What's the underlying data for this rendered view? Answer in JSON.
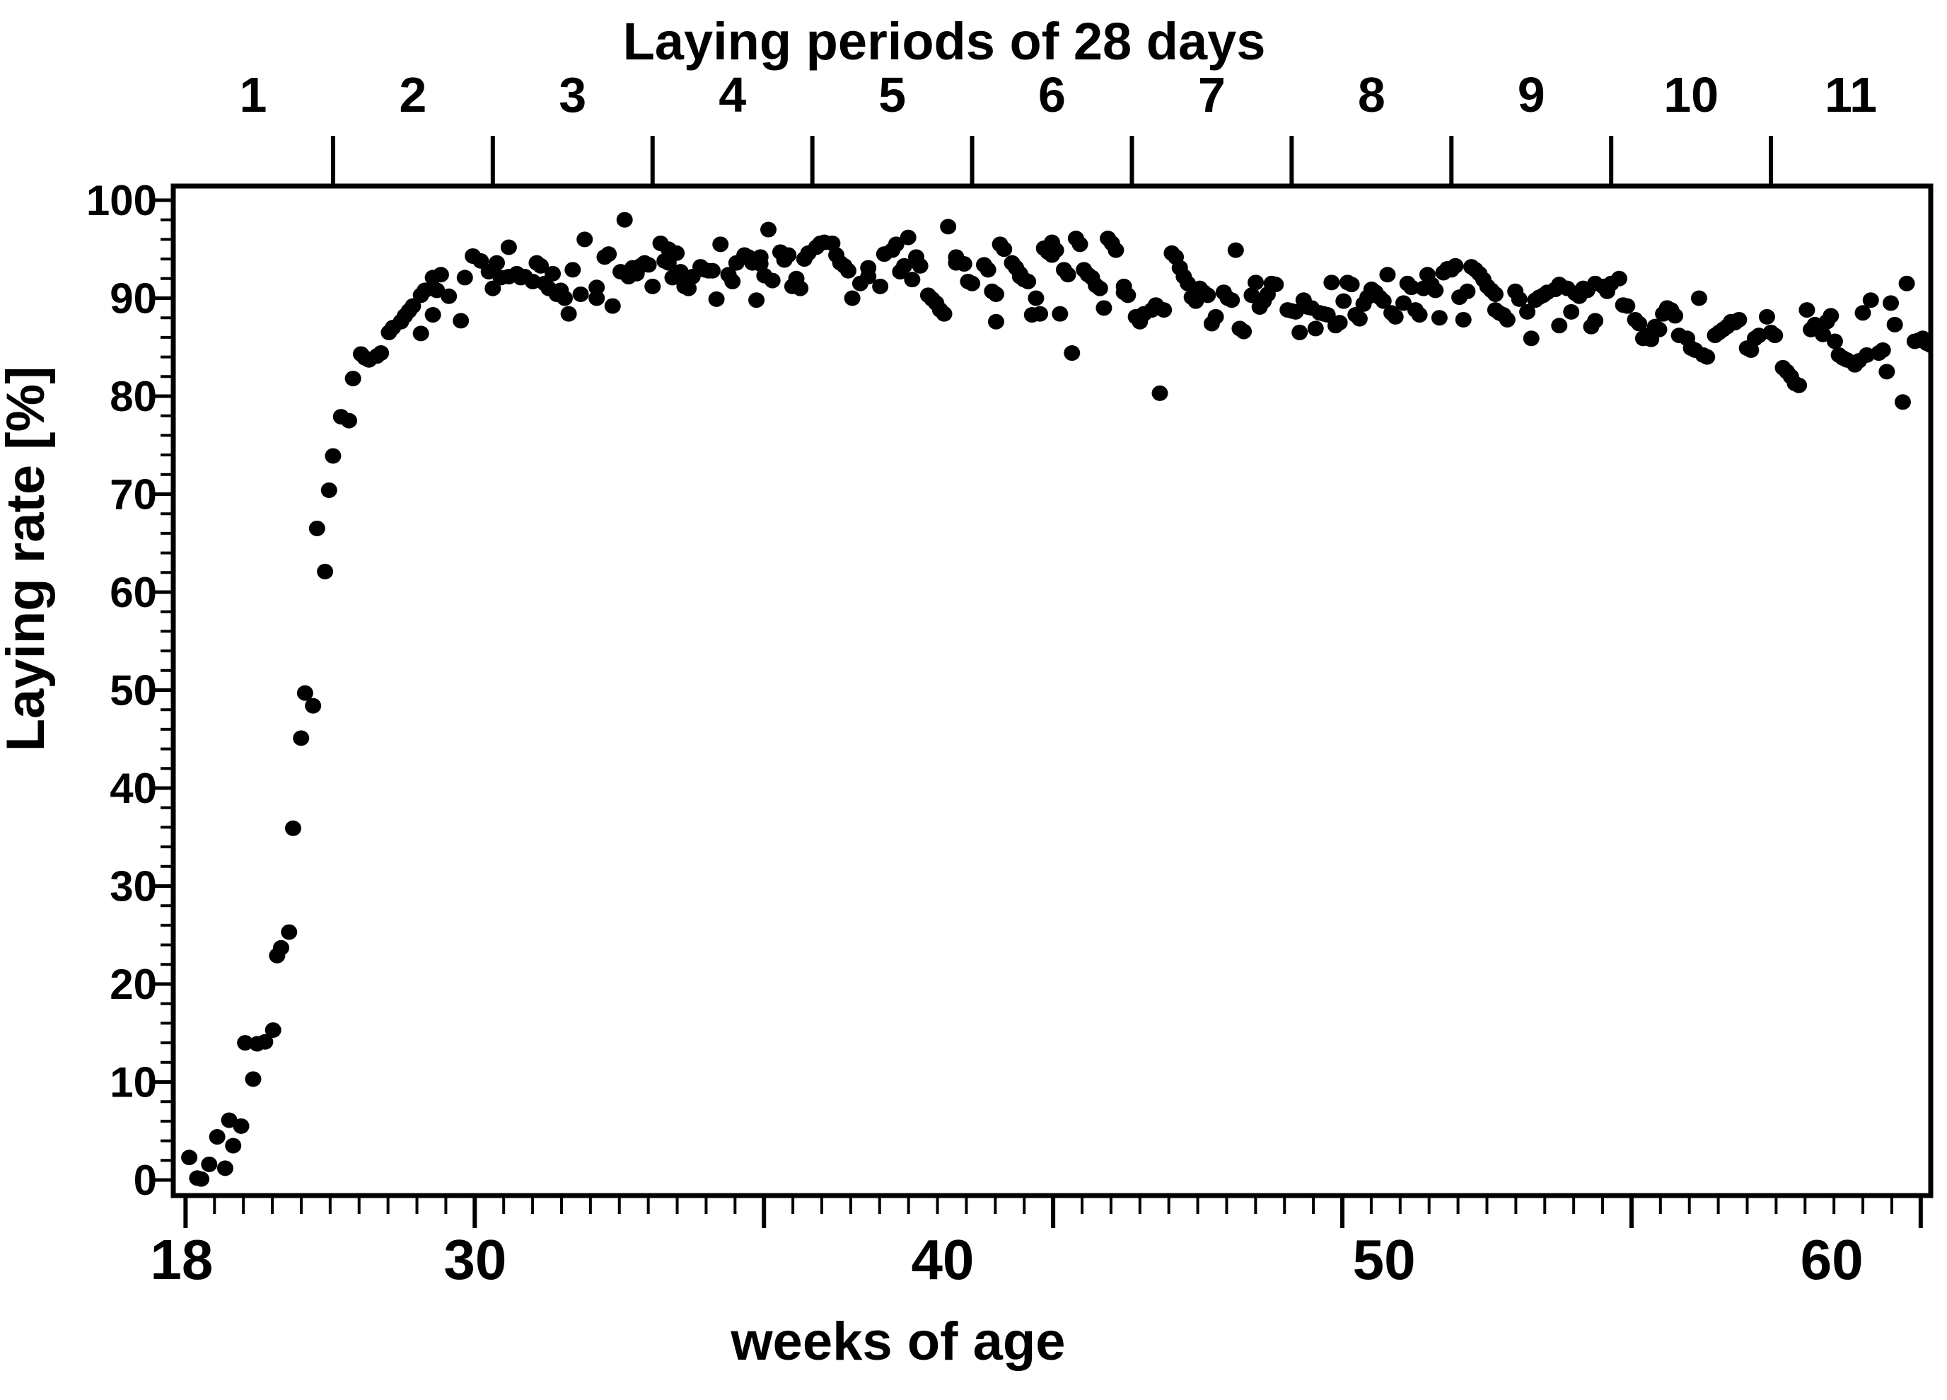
{
  "page": {
    "background": "#ffffff",
    "ink_color": "#000000"
  },
  "chart_data": {
    "type": "scatter",
    "title": "",
    "xlabel": "weeks of age",
    "ylabel": "Laying rate [%]",
    "grid": false,
    "legend": false,
    "marker": {
      "shape": "filled-circle",
      "color": "#000000",
      "radius_px": 11.5
    },
    "top_axis": {
      "title": "Laying periods of 28 days",
      "label_values": [
        "1",
        "2",
        "3",
        "4",
        "5",
        "6",
        "7",
        "8",
        "9",
        "10",
        "11"
      ],
      "label_center_weeks": [
        20,
        24,
        28,
        32,
        36,
        40,
        44,
        48,
        52,
        56,
        60
      ],
      "boundary_tick_weeks": [
        22,
        26,
        30,
        34,
        38,
        42,
        46,
        50,
        54,
        58
      ],
      "period_length_days": 28
    },
    "x_axis": {
      "range_weeks": [
        18,
        62
      ],
      "tick_labels": [
        {
          "value": "18",
          "pos_frac": 0.0048
        },
        {
          "value": "30",
          "pos_frac": 0.1718
        },
        {
          "value": "40",
          "pos_frac": 0.4378
        },
        {
          "value": "50",
          "pos_frac": 0.689
        },
        {
          "value": "60",
          "pos_frac": 0.9437
        }
      ],
      "minor_ticks": {
        "count": 61,
        "start_frac": 0.007,
        "step_frac": 0.016455,
        "major_every": 10
      }
    },
    "y_axis": {
      "range": [
        0,
        100
      ],
      "major_ticks": [
        0,
        10,
        20,
        30,
        40,
        50,
        60,
        70,
        80,
        90,
        100
      ],
      "minor_step": 2
    },
    "points": [
      [
        18.4,
        2.3
      ],
      [
        18.6,
        0.2
      ],
      [
        18.7,
        0.1
      ],
      [
        18.9,
        1.6
      ],
      [
        19.1,
        4.4
      ],
      [
        19.3,
        1.2
      ],
      [
        19.4,
        6.1
      ],
      [
        19.5,
        3.5
      ],
      [
        19.7,
        5.5
      ],
      [
        19.8,
        14.0
      ],
      [
        20.0,
        10.3
      ],
      [
        20.1,
        13.9
      ],
      [
        20.3,
        14.1
      ],
      [
        20.5,
        15.3
      ],
      [
        20.6,
        22.9
      ],
      [
        20.7,
        23.7
      ],
      [
        20.9,
        25.3
      ],
      [
        21.0,
        35.9
      ],
      [
        21.2,
        45.1
      ],
      [
        21.3,
        49.7
      ],
      [
        21.5,
        48.4
      ],
      [
        21.6,
        66.5
      ],
      [
        21.8,
        62.1
      ],
      [
        21.9,
        70.4
      ],
      [
        22.0,
        73.9
      ],
      [
        22.2,
        77.9
      ],
      [
        22.4,
        77.5
      ],
      [
        22.5,
        81.8
      ],
      [
        22.7,
        84.3
      ],
      [
        22.8,
        83.9
      ],
      [
        22.9,
        83.7
      ],
      [
        23.1,
        84.1
      ],
      [
        23.2,
        84.4
      ],
      [
        23.4,
        86.5
      ],
      [
        23.5,
        87.0
      ],
      [
        23.7,
        87.6
      ],
      [
        23.8,
        88.2
      ],
      [
        23.9,
        88.7
      ],
      [
        24.0,
        89.2
      ],
      [
        24.2,
        86.4
      ],
      [
        24.2,
        90.3
      ],
      [
        24.3,
        90.8
      ],
      [
        24.5,
        88.3
      ],
      [
        24.5,
        92.1
      ],
      [
        24.6,
        90.8
      ],
      [
        24.7,
        92.4
      ],
      [
        24.9,
        90.2
      ],
      [
        25.2,
        87.7
      ],
      [
        25.3,
        92.1
      ],
      [
        25.5,
        94.3
      ],
      [
        25.7,
        93.8
      ],
      [
        25.9,
        92.7
      ],
      [
        26.0,
        91.0
      ],
      [
        26.1,
        93.6
      ],
      [
        26.2,
        92.1
      ],
      [
        26.4,
        95.2
      ],
      [
        26.4,
        92.2
      ],
      [
        26.6,
        92.5
      ],
      [
        26.7,
        92.1
      ],
      [
        26.8,
        92.2
      ],
      [
        27.0,
        91.7
      ],
      [
        27.1,
        93.6
      ],
      [
        27.2,
        93.3
      ],
      [
        27.3,
        91.5
      ],
      [
        27.4,
        91.0
      ],
      [
        27.5,
        92.5
      ],
      [
        27.6,
        90.4
      ],
      [
        27.7,
        90.8
      ],
      [
        27.8,
        90.0
      ],
      [
        27.9,
        88.4
      ],
      [
        28.0,
        92.9
      ],
      [
        28.2,
        90.4
      ],
      [
        28.3,
        96.0
      ],
      [
        28.6,
        90.0
      ],
      [
        28.6,
        91.1
      ],
      [
        28.8,
        94.2
      ],
      [
        28.9,
        94.5
      ],
      [
        29.0,
        89.2
      ],
      [
        29.2,
        92.7
      ],
      [
        29.3,
        98.0
      ],
      [
        29.4,
        92.2
      ],
      [
        29.5,
        93.1
      ],
      [
        29.6,
        92.5
      ],
      [
        29.7,
        93.3
      ],
      [
        29.8,
        93.6
      ],
      [
        29.9,
        93.4
      ],
      [
        30.0,
        91.2
      ],
      [
        30.2,
        95.6
      ],
      [
        30.3,
        93.8
      ],
      [
        30.4,
        95.0
      ],
      [
        30.4,
        93.6
      ],
      [
        30.5,
        92.1
      ],
      [
        30.6,
        94.6
      ],
      [
        30.7,
        92.7
      ],
      [
        30.8,
        92.0
      ],
      [
        30.8,
        91.2
      ],
      [
        30.9,
        91.0
      ],
      [
        31.0,
        92.2
      ],
      [
        31.2,
        93.2
      ],
      [
        31.3,
        92.9
      ],
      [
        31.4,
        92.8
      ],
      [
        31.5,
        92.8
      ],
      [
        31.6,
        89.9
      ],
      [
        31.7,
        95.5
      ],
      [
        31.9,
        92.4
      ],
      [
        32.0,
        91.7
      ],
      [
        32.1,
        93.6
      ],
      [
        32.3,
        94.4
      ],
      [
        32.4,
        94.2
      ],
      [
        32.5,
        93.6
      ],
      [
        32.6,
        89.8
      ],
      [
        32.7,
        93.5
      ],
      [
        32.7,
        94.2
      ],
      [
        32.8,
        92.3
      ],
      [
        32.9,
        97.0
      ],
      [
        33.0,
        91.8
      ],
      [
        33.2,
        94.7
      ],
      [
        33.3,
        93.9
      ],
      [
        33.4,
        94.4
      ],
      [
        33.5,
        91.2
      ],
      [
        33.6,
        92.0
      ],
      [
        33.7,
        91.0
      ],
      [
        33.8,
        94.0
      ],
      [
        33.9,
        94.6
      ],
      [
        34.1,
        95.2
      ],
      [
        34.2,
        95.6
      ],
      [
        34.3,
        95.7
      ],
      [
        34.5,
        95.6
      ],
      [
        34.6,
        94.4
      ],
      [
        34.7,
        93.6
      ],
      [
        34.8,
        93.3
      ],
      [
        34.9,
        92.8
      ],
      [
        35.0,
        90.0
      ],
      [
        35.2,
        91.5
      ],
      [
        35.4,
        93.1
      ],
      [
        35.4,
        92.2
      ],
      [
        35.7,
        91.2
      ],
      [
        35.8,
        94.5
      ],
      [
        36.0,
        94.9
      ],
      [
        36.1,
        95.5
      ],
      [
        36.2,
        92.7
      ],
      [
        36.3,
        93.3
      ],
      [
        36.4,
        96.2
      ],
      [
        36.5,
        91.9
      ],
      [
        36.6,
        94.2
      ],
      [
        36.7,
        93.3
      ],
      [
        36.9,
        90.3
      ],
      [
        37.0,
        89.9
      ],
      [
        37.1,
        89.5
      ],
      [
        37.2,
        88.8
      ],
      [
        37.3,
        88.4
      ],
      [
        37.4,
        97.3
      ],
      [
        37.6,
        94.2
      ],
      [
        37.6,
        93.6
      ],
      [
        37.8,
        93.5
      ],
      [
        37.9,
        91.7
      ],
      [
        38.0,
        91.5
      ],
      [
        38.3,
        93.4
      ],
      [
        38.4,
        92.9
      ],
      [
        38.5,
        90.7
      ],
      [
        38.6,
        90.4
      ],
      [
        38.6,
        87.6
      ],
      [
        38.7,
        95.5
      ],
      [
        38.8,
        95.0
      ],
      [
        39.0,
        93.6
      ],
      [
        39.1,
        93.1
      ],
      [
        39.2,
        92.5
      ],
      [
        39.2,
        92.2
      ],
      [
        39.3,
        91.9
      ],
      [
        39.4,
        91.7
      ],
      [
        39.5,
        88.3
      ],
      [
        39.6,
        90.0
      ],
      [
        39.7,
        88.4
      ],
      [
        39.8,
        95.1
      ],
      [
        39.9,
        94.7
      ],
      [
        40.0,
        94.4
      ],
      [
        40.0,
        95.7
      ],
      [
        40.1,
        94.9
      ],
      [
        40.2,
        88.4
      ],
      [
        40.3,
        92.9
      ],
      [
        40.4,
        92.4
      ],
      [
        40.5,
        84.4
      ],
      [
        40.6,
        96.1
      ],
      [
        40.7,
        95.5
      ],
      [
        40.8,
        92.9
      ],
      [
        40.9,
        92.4
      ],
      [
        41.0,
        92.1
      ],
      [
        41.1,
        91.3
      ],
      [
        41.2,
        91.0
      ],
      [
        41.3,
        89.0
      ],
      [
        41.4,
        96.1
      ],
      [
        41.5,
        95.6
      ],
      [
        41.6,
        94.9
      ],
      [
        41.8,
        91.2
      ],
      [
        41.8,
        90.6
      ],
      [
        41.9,
        90.3
      ],
      [
        42.1,
        88.1
      ],
      [
        42.2,
        87.6
      ],
      [
        42.3,
        88.4
      ],
      [
        42.5,
        88.8
      ],
      [
        42.6,
        89.3
      ],
      [
        42.7,
        80.3
      ],
      [
        42.8,
        88.8
      ],
      [
        43.0,
        94.6
      ],
      [
        43.1,
        94.2
      ],
      [
        43.2,
        93.1
      ],
      [
        43.3,
        92.2
      ],
      [
        43.4,
        91.5
      ],
      [
        43.5,
        90.1
      ],
      [
        43.6,
        89.7
      ],
      [
        43.7,
        91.0
      ],
      [
        43.8,
        90.6
      ],
      [
        43.9,
        90.3
      ],
      [
        44.0,
        87.4
      ],
      [
        44.1,
        88.1
      ],
      [
        44.3,
        90.6
      ],
      [
        44.4,
        90.0
      ],
      [
        44.5,
        89.8
      ],
      [
        44.6,
        94.9
      ],
      [
        44.7,
        86.9
      ],
      [
        44.8,
        86.6
      ],
      [
        45.0,
        90.3
      ],
      [
        45.1,
        91.6
      ],
      [
        45.2,
        89.1
      ],
      [
        45.3,
        89.7
      ],
      [
        45.4,
        90.4
      ],
      [
        45.5,
        91.5
      ],
      [
        45.6,
        91.4
      ],
      [
        45.9,
        88.8
      ],
      [
        46.0,
        88.7
      ],
      [
        46.1,
        88.6
      ],
      [
        46.2,
        86.5
      ],
      [
        46.3,
        89.8
      ],
      [
        46.4,
        89.1
      ],
      [
        46.5,
        89.0
      ],
      [
        46.6,
        86.9
      ],
      [
        46.7,
        88.5
      ],
      [
        46.8,
        88.4
      ],
      [
        46.9,
        88.3
      ],
      [
        47.0,
        91.6
      ],
      [
        47.1,
        87.2
      ],
      [
        47.2,
        87.5
      ],
      [
        47.3,
        89.7
      ],
      [
        47.4,
        91.6
      ],
      [
        47.5,
        91.4
      ],
      [
        47.6,
        88.3
      ],
      [
        47.7,
        87.9
      ],
      [
        47.8,
        89.4
      ],
      [
        47.9,
        90.1
      ],
      [
        48.0,
        90.9
      ],
      [
        48.1,
        90.6
      ],
      [
        48.2,
        90.1
      ],
      [
        48.3,
        89.7
      ],
      [
        48.4,
        92.4
      ],
      [
        48.5,
        88.5
      ],
      [
        48.6,
        88.1
      ],
      [
        48.8,
        89.5
      ],
      [
        48.9,
        91.5
      ],
      [
        49.0,
        91.1
      ],
      [
        49.1,
        88.8
      ],
      [
        49.2,
        88.3
      ],
      [
        49.3,
        91.0
      ],
      [
        49.4,
        92.4
      ],
      [
        49.5,
        91.4
      ],
      [
        49.6,
        90.8
      ],
      [
        49.7,
        88.0
      ],
      [
        49.8,
        92.6
      ],
      [
        49.9,
        93.0
      ],
      [
        50.0,
        92.9
      ],
      [
        50.1,
        93.3
      ],
      [
        50.2,
        90.1
      ],
      [
        50.3,
        87.8
      ],
      [
        50.4,
        90.7
      ],
      [
        50.5,
        93.2
      ],
      [
        50.6,
        92.9
      ],
      [
        50.7,
        92.5
      ],
      [
        50.8,
        91.9
      ],
      [
        50.9,
        91.2
      ],
      [
        51.0,
        90.8
      ],
      [
        51.1,
        90.4
      ],
      [
        51.1,
        88.8
      ],
      [
        51.2,
        88.5
      ],
      [
        51.3,
        88.3
      ],
      [
        51.4,
        87.8
      ],
      [
        51.6,
        90.7
      ],
      [
        51.7,
        89.9
      ],
      [
        51.9,
        88.6
      ],
      [
        52.0,
        85.9
      ],
      [
        52.1,
        89.8
      ],
      [
        52.2,
        90.1
      ],
      [
        52.3,
        90.3
      ],
      [
        52.4,
        90.6
      ],
      [
        52.6,
        90.9
      ],
      [
        52.7,
        87.2
      ],
      [
        52.7,
        91.4
      ],
      [
        52.9,
        91.0
      ],
      [
        53.0,
        88.6
      ],
      [
        53.1,
        90.5
      ],
      [
        53.2,
        90.2
      ],
      [
        53.3,
        91.0
      ],
      [
        53.4,
        90.8
      ],
      [
        53.5,
        87.1
      ],
      [
        53.6,
        87.7
      ],
      [
        53.6,
        91.5
      ],
      [
        53.8,
        91.2
      ],
      [
        53.9,
        90.7
      ],
      [
        54.0,
        91.5
      ],
      [
        54.2,
        92.0
      ],
      [
        54.3,
        89.3
      ],
      [
        54.4,
        89.2
      ],
      [
        54.6,
        87.8
      ],
      [
        54.7,
        87.4
      ],
      [
        54.8,
        85.9
      ],
      [
        54.9,
        86.2
      ],
      [
        55.0,
        85.8
      ],
      [
        55.1,
        87.1
      ],
      [
        55.2,
        86.8
      ],
      [
        55.3,
        88.4
      ],
      [
        55.4,
        89.0
      ],
      [
        55.5,
        88.8
      ],
      [
        55.6,
        88.2
      ],
      [
        55.7,
        86.2
      ],
      [
        55.9,
        85.9
      ],
      [
        56.0,
        84.9
      ],
      [
        56.1,
        84.7
      ],
      [
        56.2,
        90.0
      ],
      [
        56.3,
        84.2
      ],
      [
        56.4,
        84.0
      ],
      [
        56.6,
        86.2
      ],
      [
        56.7,
        86.5
      ],
      [
        56.8,
        86.8
      ],
      [
        56.9,
        87.1
      ],
      [
        57.0,
        87.6
      ],
      [
        57.1,
        87.5
      ],
      [
        57.2,
        87.8
      ],
      [
        57.4,
        84.9
      ],
      [
        57.5,
        84.7
      ],
      [
        57.6,
        85.9
      ],
      [
        57.7,
        86.2
      ],
      [
        57.9,
        88.1
      ],
      [
        58.0,
        86.5
      ],
      [
        58.1,
        86.2
      ],
      [
        58.3,
        82.9
      ],
      [
        58.4,
        82.5
      ],
      [
        58.5,
        82.0
      ],
      [
        58.6,
        81.3
      ],
      [
        58.7,
        81.1
      ],
      [
        58.9,
        88.8
      ],
      [
        59.0,
        86.8
      ],
      [
        59.1,
        87.3
      ],
      [
        59.2,
        87.1
      ],
      [
        59.3,
        86.3
      ],
      [
        59.4,
        87.6
      ],
      [
        59.5,
        88.2
      ],
      [
        59.6,
        85.6
      ],
      [
        59.7,
        84.2
      ],
      [
        59.8,
        83.9
      ],
      [
        59.9,
        83.7
      ],
      [
        60.1,
        83.2
      ],
      [
        60.2,
        83.6
      ],
      [
        60.3,
        88.5
      ],
      [
        60.4,
        84.2
      ],
      [
        60.5,
        89.8
      ],
      [
        60.7,
        84.4
      ],
      [
        60.8,
        84.7
      ],
      [
        60.9,
        82.5
      ],
      [
        61.0,
        89.5
      ],
      [
        61.1,
        87.3
      ],
      [
        61.3,
        79.4
      ],
      [
        61.4,
        91.5
      ],
      [
        61.6,
        85.6
      ],
      [
        61.7,
        85.7
      ],
      [
        61.8,
        85.9
      ],
      [
        61.9,
        85.4
      ],
      [
        62.0,
        85.7
      ],
      [
        62.0,
        85.2
      ]
    ]
  }
}
